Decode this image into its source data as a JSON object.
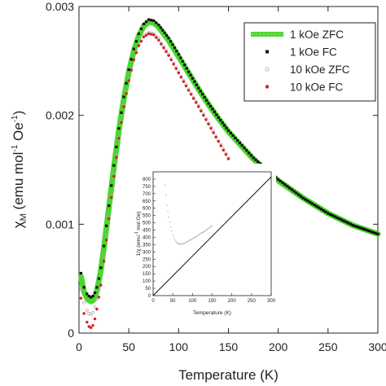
{
  "chart_data": [
    {
      "id": "main",
      "type": "scatter",
      "title": "",
      "xlabel": "Temperature (K)",
      "ylabel_main": "χ",
      "ylabel_sub": "M",
      "ylabel_units": " (emu mol",
      "ylabel_sup1": "-1",
      "ylabel_mid": " Oe",
      "ylabel_sup2": "-1",
      "ylabel_close": ")",
      "xlim": [
        0,
        300
      ],
      "ylim": [
        0,
        0.003
      ],
      "xticks": [
        0,
        50,
        100,
        150,
        200,
        250,
        300
      ],
      "xtick_labels": [
        "0",
        "50",
        "100",
        "150",
        "200",
        "250",
        "300"
      ],
      "yticks": [
        0,
        0.001,
        0.002,
        0.003
      ],
      "ytick_labels": [
        "0",
        "0.001",
        "0.002",
        "0.003"
      ],
      "grid": false,
      "legend_position": "top-right",
      "series": [
        {
          "name": "1 kOe ZFC",
          "marker": "thick-line",
          "color": "#4cd630",
          "x": [
            2,
            5,
            8,
            10,
            12,
            14,
            16,
            18,
            20,
            22,
            25,
            30,
            35,
            40,
            45,
            50,
            55,
            60,
            65,
            70,
            75,
            80,
            90,
            100,
            110,
            120,
            130,
            140,
            150,
            175,
            200,
            225,
            250,
            275,
            300
          ],
          "y": [
            0.00052,
            0.00038,
            0.00032,
            0.0003,
            0.00029,
            0.0003,
            0.00033,
            0.00039,
            0.00048,
            0.00058,
            0.00078,
            0.00115,
            0.00152,
            0.00186,
            0.00215,
            0.0024,
            0.00259,
            0.00273,
            0.00282,
            0.00286,
            0.00285,
            0.00281,
            0.00269,
            0.00254,
            0.00239,
            0.00224,
            0.0021,
            0.00197,
            0.00185,
            0.0016,
            0.0014,
            0.00124,
            0.0011,
            0.00099,
            0.00091
          ]
        },
        {
          "name": "1 kOe FC",
          "marker": "square",
          "color": "#111111",
          "x": [
            2,
            5,
            8,
            10,
            12,
            14,
            16,
            18,
            20,
            22,
            25,
            30,
            35,
            40,
            45,
            50,
            55,
            60,
            65,
            70,
            75,
            80,
            90,
            100,
            110,
            120,
            130,
            140,
            150,
            175,
            200,
            225,
            250,
            275,
            300
          ],
          "y": [
            0.00055,
            0.00042,
            0.00036,
            0.00034,
            0.00033,
            0.00034,
            0.00037,
            0.00042,
            0.0005,
            0.0006,
            0.0008,
            0.00117,
            0.00154,
            0.00188,
            0.00217,
            0.00242,
            0.00261,
            0.00275,
            0.00284,
            0.00288,
            0.00287,
            0.00283,
            0.00271,
            0.00256,
            0.0024,
            0.00225,
            0.00211,
            0.00198,
            0.00186,
            0.00161,
            0.00141,
            0.00124,
            0.0011,
            0.00099,
            0.00091
          ]
        },
        {
          "name": "10 kOe ZFC",
          "marker": "open-circle",
          "color": "#aaaaaa",
          "x": [
            2,
            5,
            8,
            10,
            12,
            14,
            16,
            18,
            20,
            22,
            25,
            30,
            35,
            40,
            45,
            50,
            55,
            60,
            65,
            70,
            75,
            80,
            90,
            100,
            110,
            120,
            130,
            140,
            150
          ],
          "y": [
            0.0004,
            0.00028,
            0.00021,
            0.00018,
            0.00017,
            0.00019,
            0.00024,
            0.00031,
            0.0004,
            0.0005,
            0.00071,
            0.00108,
            0.00146,
            0.0018,
            0.00209,
            0.00233,
            0.00252,
            0.00265,
            0.00273,
            0.00276,
            0.00275,
            0.0027,
            0.00256,
            0.0024,
            0.00224,
            0.00209,
            0.00193,
            0.00177,
            0.00161
          ]
        },
        {
          "name": "10 kOe FC",
          "marker": "dot",
          "color": "#d42020",
          "x": [
            2,
            5,
            8,
            10,
            12,
            14,
            16,
            18,
            20,
            22,
            25,
            30,
            35,
            40,
            45,
            50,
            55,
            60,
            65,
            70,
            75,
            80,
            90,
            100,
            110,
            120,
            130,
            140,
            150
          ],
          "y": [
            0.00032,
            0.00018,
            0.0001,
            6e-05,
            5e-05,
            7e-05,
            0.00013,
            0.00022,
            0.00033,
            0.00044,
            0.00066,
            0.00105,
            0.00144,
            0.00179,
            0.00208,
            0.00232,
            0.00251,
            0.00264,
            0.00272,
            0.00275,
            0.00274,
            0.00269,
            0.00255,
            0.00239,
            0.00223,
            0.00208,
            0.00192,
            0.00176,
            0.0016
          ]
        }
      ]
    },
    {
      "id": "inset",
      "type": "scatter",
      "xlabel": "Temperature (K)",
      "ylabel": "1/χ (emu",
      "ylabel_sup": "-1",
      "ylabel_tail": " mol Oe)",
      "xlim": [
        0,
        300
      ],
      "ylim": [
        0,
        850
      ],
      "xticks": [
        0,
        50,
        100,
        150,
        200,
        250,
        300
      ],
      "xtick_labels": [
        "0",
        "50",
        "100",
        "150",
        "200",
        "250",
        "300"
      ],
      "yticks": [
        0,
        50,
        100,
        150,
        200,
        250,
        300,
        350,
        400,
        450,
        500,
        550,
        600,
        650,
        700,
        750,
        800
      ],
      "ytick_labels": [
        "0",
        "50",
        "100",
        "150",
        "200",
        "250",
        "300",
        "350",
        "400",
        "450",
        "500",
        "550",
        "600",
        "650",
        "700",
        "750",
        "800"
      ],
      "grid": false,
      "series": [
        {
          "name": "",
          "marker": "dot",
          "color": "#aaaaaa",
          "x": [
            30,
            35,
            40,
            45,
            50,
            55,
            60,
            65,
            70,
            75,
            80,
            90,
            100,
            110,
            120,
            130,
            140,
            150
          ],
          "y": [
            760,
            620,
            540,
            470,
            420,
            385,
            365,
            355,
            352,
            355,
            360,
            375,
            390,
            405,
            425,
            440,
            460,
            480
          ]
        },
        {
          "name": "",
          "marker": "line",
          "color": "#111111",
          "x": [
            0,
            300
          ],
          "y": [
            0,
            815
          ]
        }
      ]
    }
  ]
}
